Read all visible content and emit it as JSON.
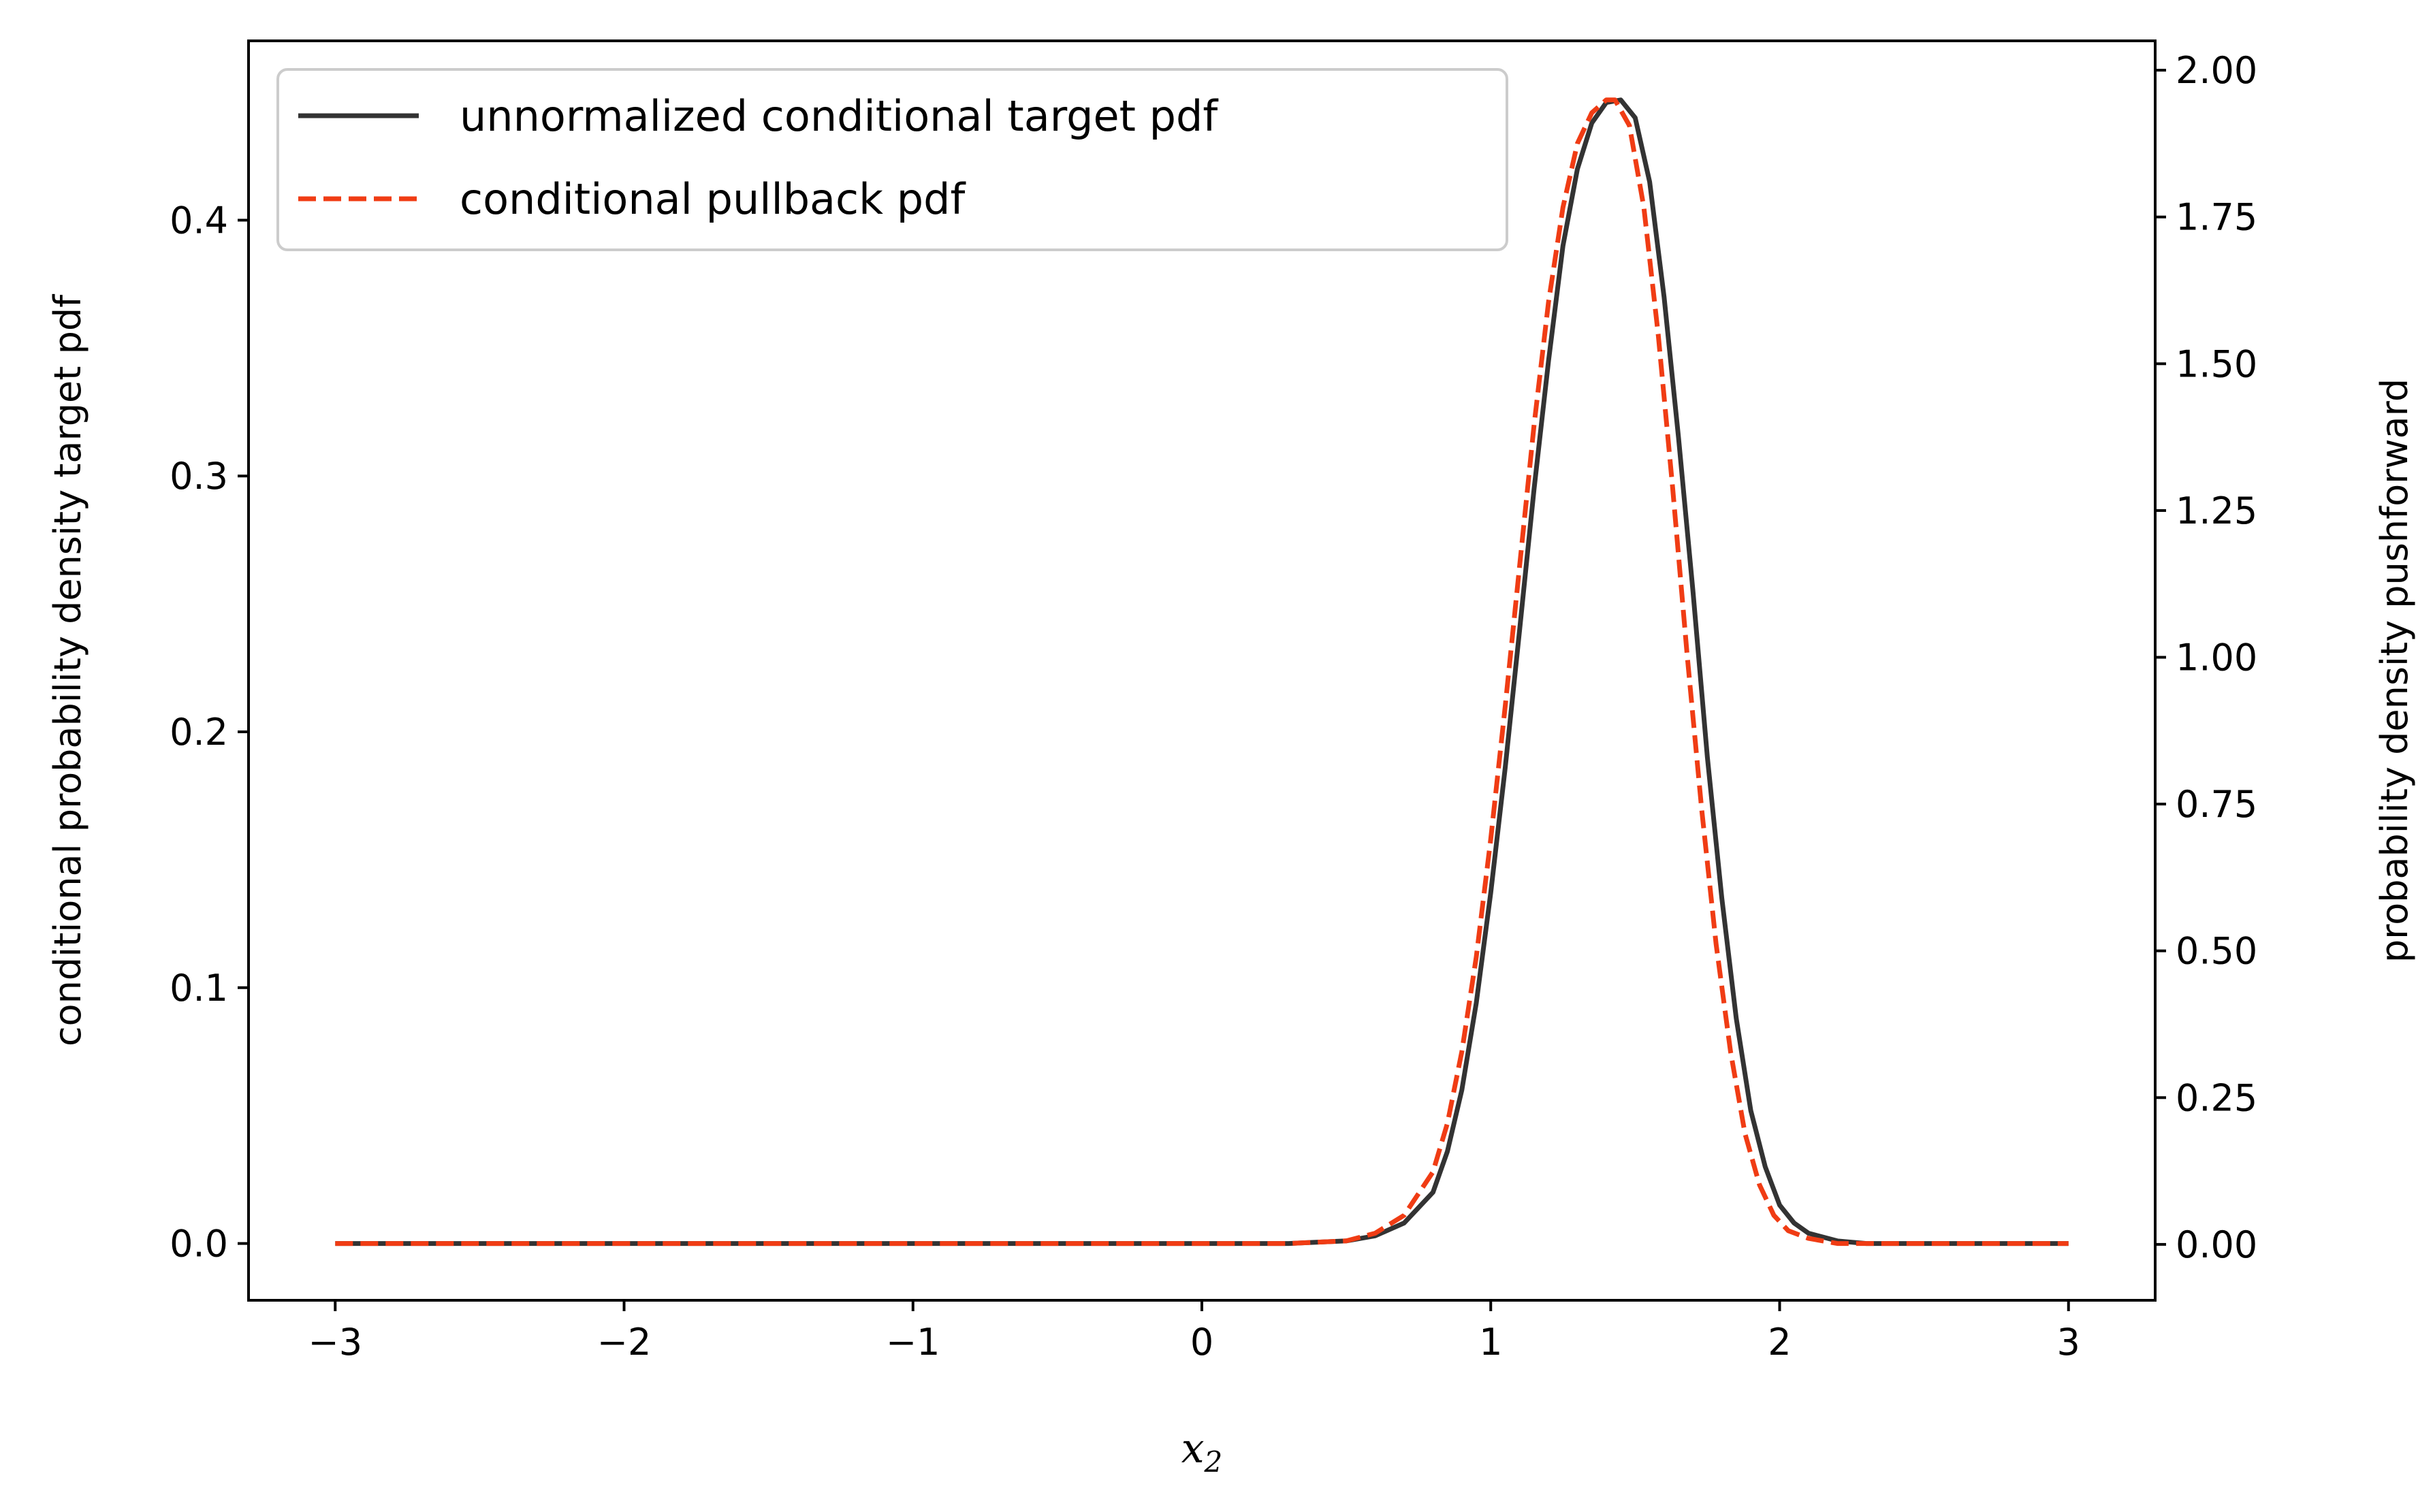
{
  "chart_data": {
    "type": "line",
    "title": "",
    "xlabel_main": "x",
    "xlabel_sub": "2",
    "ylabel_left": "conditional probability density target pdf",
    "ylabel_right": "probability density pushforward",
    "xlim": [
      -3.3,
      3.3
    ],
    "ylim_left": [
      -0.0222,
      0.4701
    ],
    "ylim_right": [
      -0.0952,
      2.05
    ],
    "x_ticks": [
      -3,
      -2,
      -1,
      0,
      1,
      2,
      3
    ],
    "x_tick_labels": [
      "−3",
      "−2",
      "−1",
      "0",
      "1",
      "2",
      "3"
    ],
    "y_left_ticks": [
      0.0,
      0.1,
      0.2,
      0.3,
      0.4
    ],
    "y_left_tick_labels": [
      "0.0",
      "0.1",
      "0.2",
      "0.3",
      "0.4"
    ],
    "y_right_ticks": [
      0.0,
      0.25,
      0.5,
      0.75,
      1.0,
      1.25,
      1.5,
      1.75,
      2.0
    ],
    "y_right_tick_labels": [
      "0.00",
      "0.25",
      "0.50",
      "0.75",
      "1.00",
      "1.25",
      "1.50",
      "1.75",
      "2.00"
    ],
    "grid": false,
    "legend_position": "top-left",
    "series": [
      {
        "name": "unnormalized conditional target pdf",
        "axis": "left",
        "color": "#333333",
        "style": "solid",
        "x": [
          -3.0,
          -2.0,
          -1.0,
          0.0,
          0.3,
          0.5,
          0.6,
          0.7,
          0.8,
          0.85,
          0.9,
          0.95,
          1.0,
          1.05,
          1.1,
          1.15,
          1.2,
          1.25,
          1.3,
          1.35,
          1.4,
          1.45,
          1.5,
          1.55,
          1.6,
          1.65,
          1.7,
          1.75,
          1.8,
          1.85,
          1.9,
          1.95,
          2.0,
          2.05,
          2.1,
          2.2,
          2.3,
          2.4,
          2.6,
          3.0
        ],
        "y": [
          0.0,
          0.0,
          0.0,
          0.0,
          0.0,
          0.001,
          0.003,
          0.008,
          0.02,
          0.036,
          0.06,
          0.094,
          0.137,
          0.186,
          0.24,
          0.295,
          0.345,
          0.39,
          0.42,
          0.438,
          0.446,
          0.447,
          0.44,
          0.415,
          0.37,
          0.315,
          0.255,
          0.19,
          0.135,
          0.088,
          0.052,
          0.03,
          0.015,
          0.008,
          0.004,
          0.001,
          0.0,
          0.0,
          0.0,
          0.0
        ]
      },
      {
        "name": "conditional pullback pdf",
        "axis": "left",
        "color": "#f03c14",
        "style": "dashed",
        "x": [
          -3.0,
          -2.0,
          -1.0,
          0.0,
          0.3,
          0.5,
          0.6,
          0.7,
          0.8,
          0.85,
          0.9,
          0.95,
          1.0,
          1.05,
          1.1,
          1.15,
          1.2,
          1.25,
          1.3,
          1.35,
          1.4,
          1.43,
          1.48,
          1.53,
          1.58,
          1.63,
          1.68,
          1.73,
          1.78,
          1.83,
          1.88,
          1.93,
          1.98,
          2.03,
          2.1,
          2.2,
          2.3,
          2.4,
          2.6,
          3.0
        ],
        "y": [
          0.0,
          0.0,
          0.0,
          0.0,
          0.0,
          0.001,
          0.004,
          0.011,
          0.028,
          0.047,
          0.075,
          0.112,
          0.158,
          0.21,
          0.265,
          0.32,
          0.368,
          0.405,
          0.43,
          0.442,
          0.447,
          0.447,
          0.437,
          0.405,
          0.355,
          0.295,
          0.23,
          0.17,
          0.117,
          0.075,
          0.043,
          0.023,
          0.011,
          0.005,
          0.002,
          0.0,
          0.0,
          0.0,
          0.0,
          0.0
        ]
      }
    ]
  }
}
